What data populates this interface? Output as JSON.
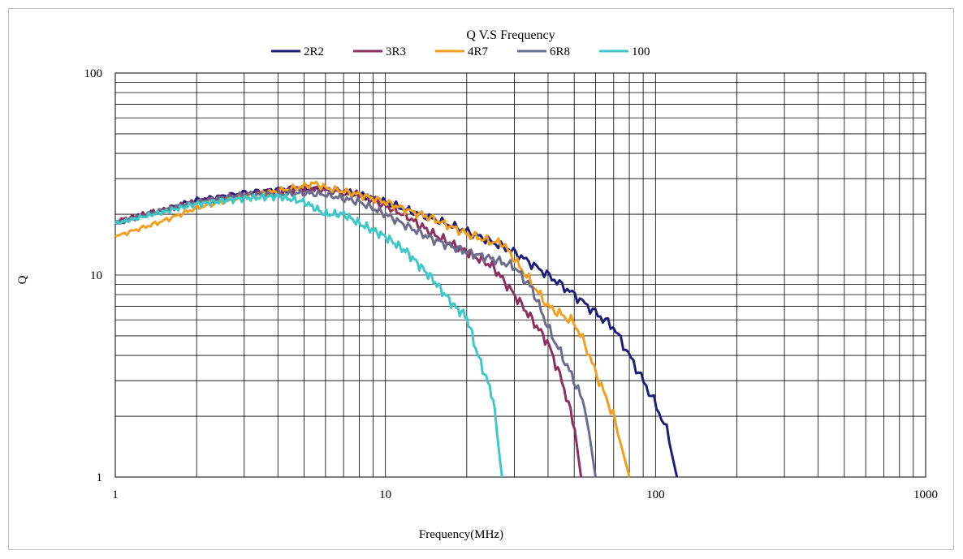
{
  "chart_data": {
    "type": "line",
    "title": "Q V.S Frequency",
    "xlabel": "Frequency(MHz)",
    "ylabel": "Q",
    "xscale": "log",
    "yscale": "log",
    "xlim": [
      1,
      1000
    ],
    "ylim": [
      1,
      100
    ],
    "x_tick_labels": [
      "1",
      "10",
      "100",
      "1000"
    ],
    "y_tick_labels": [
      "1",
      "10",
      "100"
    ],
    "grid": true,
    "legend_position": "top",
    "series": [
      {
        "name": "2R2",
        "color": "#1f1f78",
        "x": [
          1,
          1.5,
          2,
          3,
          4,
          5,
          6,
          8,
          10,
          12,
          15,
          20,
          25,
          30,
          40,
          50,
          60,
          70,
          80,
          90,
          100,
          110,
          120
        ],
        "y": [
          18,
          21,
          23.5,
          25.5,
          26.5,
          27,
          26.5,
          25,
          23,
          21,
          19,
          16.5,
          14.5,
          13,
          10,
          8,
          6.5,
          5.5,
          4,
          3,
          2.3,
          1.7,
          1
        ]
      },
      {
        "name": "3R3",
        "color": "#8c3060",
        "x": [
          1,
          1.5,
          2,
          3,
          4,
          5,
          6,
          8,
          10,
          12,
          15,
          20,
          25,
          30,
          35,
          40,
          45,
          50,
          53
        ],
        "y": [
          18.5,
          21,
          23,
          25,
          26,
          27,
          26.5,
          25,
          22,
          19.5,
          16,
          13,
          11,
          8,
          6,
          4.6,
          3,
          1.8,
          1
        ]
      },
      {
        "name": "4R7",
        "color": "#f0a020",
        "x": [
          1,
          1.5,
          2,
          3,
          4,
          5,
          5.5,
          6,
          8,
          10,
          12,
          15,
          20,
          25,
          27,
          30,
          35,
          40,
          50,
          55,
          60,
          70,
          80
        ],
        "y": [
          15.5,
          18.5,
          21.5,
          24.5,
          26,
          27.5,
          28.5,
          27,
          25,
          23,
          21,
          19,
          16,
          14.5,
          14.5,
          12,
          9,
          7,
          5.8,
          4.5,
          3.3,
          2,
          1
        ]
      },
      {
        "name": "6R8",
        "color": "#6c6c8c",
        "x": [
          1,
          1.5,
          2,
          3,
          4,
          5,
          6,
          8,
          10,
          12,
          15,
          20,
          25,
          30,
          35,
          40,
          45,
          50,
          55,
          60
        ],
        "y": [
          18,
          21,
          23,
          25,
          25,
          25.5,
          25,
          23,
          20,
          17.5,
          15,
          13,
          12,
          11,
          8.5,
          5.5,
          4,
          3,
          2.2,
          1
        ]
      },
      {
        "name": "100",
        "color": "#40c8c8",
        "x": [
          1,
          1.5,
          2,
          3,
          4,
          5,
          6,
          7,
          8,
          10,
          12,
          15,
          18,
          20,
          22,
          25,
          27
        ],
        "y": [
          18,
          20.5,
          22.5,
          24,
          24.5,
          23,
          20,
          20,
          18,
          15.5,
          13,
          9.5,
          7,
          6.2,
          4,
          2.5,
          1
        ]
      }
    ]
  }
}
